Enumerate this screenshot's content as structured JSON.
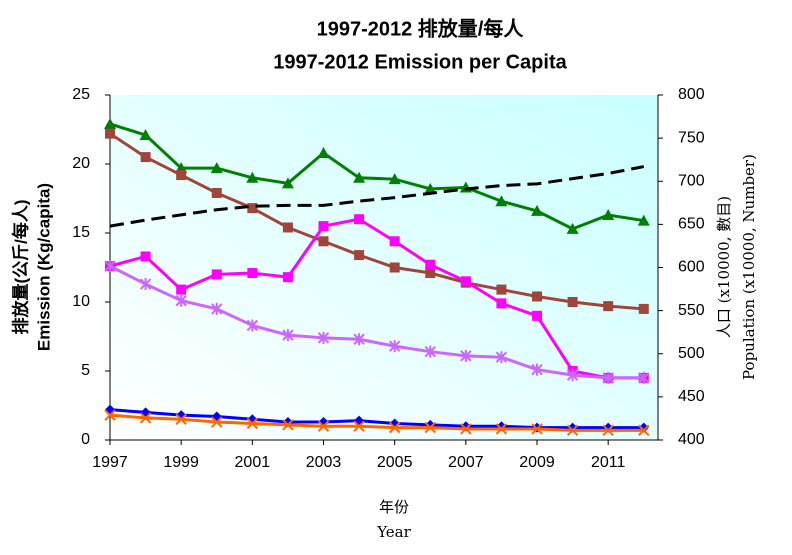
{
  "chart_data": {
    "type": "line",
    "title": "1997-2012 排放量/每人",
    "subtitle": "1997-2012 Emission per Capita",
    "ylabel_zh": "排放量(公斤/每人)",
    "ylabel": "Emission (Kg/capita)",
    "y2label_zh": "人口 (x10000, 數目)",
    "y2label": "Population (x10000, Number)",
    "xlabel_zh": "年份",
    "xlabel": "Year",
    "x": [
      1997,
      1998,
      1999,
      2000,
      2001,
      2002,
      2003,
      2004,
      2005,
      2006,
      2007,
      2008,
      2009,
      2010,
      2011,
      2012
    ],
    "xlim": [
      1997,
      2012.4
    ],
    "xticks": [
      1997,
      1999,
      2001,
      2003,
      2005,
      2007,
      2009,
      2011
    ],
    "ylim": [
      0,
      25
    ],
    "yticks": [
      0,
      5,
      10,
      15,
      20,
      25
    ],
    "y2lim": [
      400,
      800
    ],
    "y2ticks": [
      400,
      450,
      500,
      550,
      600,
      650,
      700,
      750,
      800
    ],
    "series": [
      {
        "color": "#008000",
        "marker": "triangle",
        "values": [
          22.9,
          22.1,
          19.7,
          19.7,
          19.0,
          18.6,
          20.8,
          19.0,
          18.9,
          18.2,
          18.3,
          17.3,
          16.6,
          15.3,
          16.3,
          15.9
        ]
      },
      {
        "color": "#a0453a",
        "marker": "square",
        "values": [
          22.2,
          20.5,
          19.2,
          17.9,
          16.8,
          15.4,
          14.4,
          13.4,
          12.5,
          12.1,
          11.4,
          10.9,
          10.4,
          10.0,
          9.7,
          9.5
        ]
      },
      {
        "color": "#ff00ff",
        "marker": "square",
        "values": [
          12.6,
          13.3,
          10.9,
          12.0,
          12.1,
          11.8,
          15.5,
          16.0,
          14.4,
          12.7,
          11.5,
          9.9,
          9.0,
          5.0,
          4.5,
          4.5
        ]
      },
      {
        "color": "#cc66ff",
        "marker": "star",
        "values": [
          12.6,
          11.3,
          10.1,
          9.5,
          8.3,
          7.6,
          7.4,
          7.3,
          6.8,
          6.4,
          6.1,
          6.0,
          5.1,
          4.7,
          4.5,
          4.5
        ]
      },
      {
        "color": "#0000ff",
        "marker": "diamond",
        "values": [
          2.2,
          2.0,
          1.8,
          1.7,
          1.5,
          1.3,
          1.3,
          1.4,
          1.2,
          1.1,
          1.0,
          1.0,
          0.9,
          0.9,
          0.9,
          0.9
        ]
      },
      {
        "color": "#ff6600",
        "marker": "x",
        "values": [
          1.8,
          1.6,
          1.5,
          1.3,
          1.2,
          1.1,
          1.0,
          1.0,
          0.9,
          0.9,
          0.8,
          0.8,
          0.8,
          0.7,
          0.7,
          0.7
        ]
      },
      {
        "color": "#000000",
        "marker": "none",
        "linestyle": "dashed",
        "axis": "y2",
        "values": [
          648,
          655,
          661,
          667,
          671,
          672,
          672,
          677,
          681,
          686,
          691,
          695,
          697,
          703,
          709,
          717
        ]
      }
    ]
  }
}
